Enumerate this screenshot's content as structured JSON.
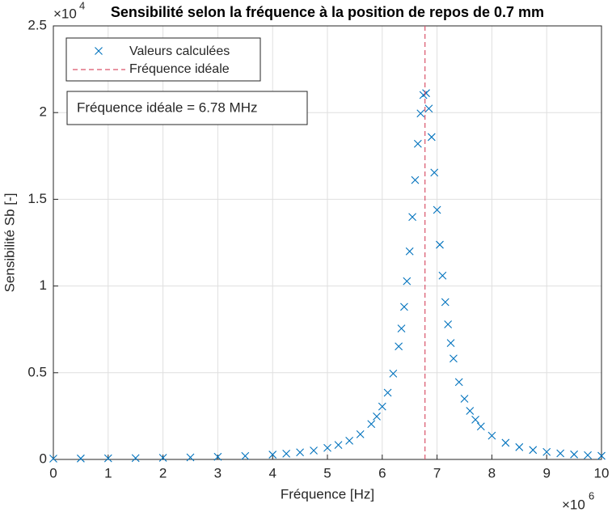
{
  "chart_data": {
    "type": "scatter",
    "title": "Sensibilité selon la fréquence à la position de repos de 0.7 mm",
    "x_label": "Fréquence [Hz]",
    "y_label": "Sensibilité Sb [-]",
    "x_multiplier": {
      "base": "×10",
      "exponent": "6"
    },
    "y_multiplier": {
      "base": "×10",
      "exponent": "4"
    },
    "xlim": [
      0,
      10
    ],
    "ylim": [
      0,
      2.5
    ],
    "xticks": [
      0,
      1,
      2,
      3,
      4,
      5,
      6,
      7,
      8,
      9,
      10
    ],
    "yticks": [
      0,
      0.5,
      1,
      1.5,
      2,
      2.5
    ],
    "grid": true,
    "legend": "top-left",
    "series": [
      {
        "name": "Valeurs calculées",
        "color": "#0072bd",
        "marker": "x",
        "x": [
          0,
          0.5,
          1,
          1.5,
          2,
          2.5,
          3,
          3.5,
          4,
          4.25,
          4.5,
          4.75,
          5,
          5.2,
          5.4,
          5.6,
          5.8,
          5.9,
          6.0,
          6.1,
          6.2,
          6.3,
          6.35,
          6.4,
          6.45,
          6.5,
          6.55,
          6.6,
          6.65,
          6.7,
          6.75,
          6.8,
          6.85,
          6.9,
          6.95,
          7.0,
          7.05,
          7.1,
          7.15,
          7.2,
          7.25,
          7.3,
          7.4,
          7.5,
          7.6,
          7.7,
          7.8,
          8.0,
          8.25,
          8.5,
          8.75,
          9,
          9.25,
          9.5,
          9.75,
          10
        ],
        "values": [
          0.0047,
          0.0055,
          0.0065,
          0.0078,
          0.0095,
          0.0118,
          0.0151,
          0.02,
          0.0277,
          0.0334,
          0.041,
          0.0515,
          0.0665,
          0.0835,
          0.108,
          0.145,
          0.204,
          0.248,
          0.305,
          0.385,
          0.495,
          0.652,
          0.755,
          0.88,
          1.028,
          1.2,
          1.398,
          1.611,
          1.82,
          1.995,
          2.101,
          2.112,
          2.023,
          1.859,
          1.654,
          1.439,
          1.238,
          1.06,
          0.907,
          0.779,
          0.671,
          0.582,
          0.446,
          0.35,
          0.28,
          0.229,
          0.19,
          0.137,
          0.0959,
          0.0709,
          0.0545,
          0.0432,
          0.035,
          0.0289,
          0.0243,
          0.0207
        ]
      }
    ],
    "vline": {
      "name": "Fréquence idéale",
      "x": 6.78,
      "color": "#d9536a"
    },
    "annotation": "Fréquence idéale = 6.78 MHz"
  }
}
